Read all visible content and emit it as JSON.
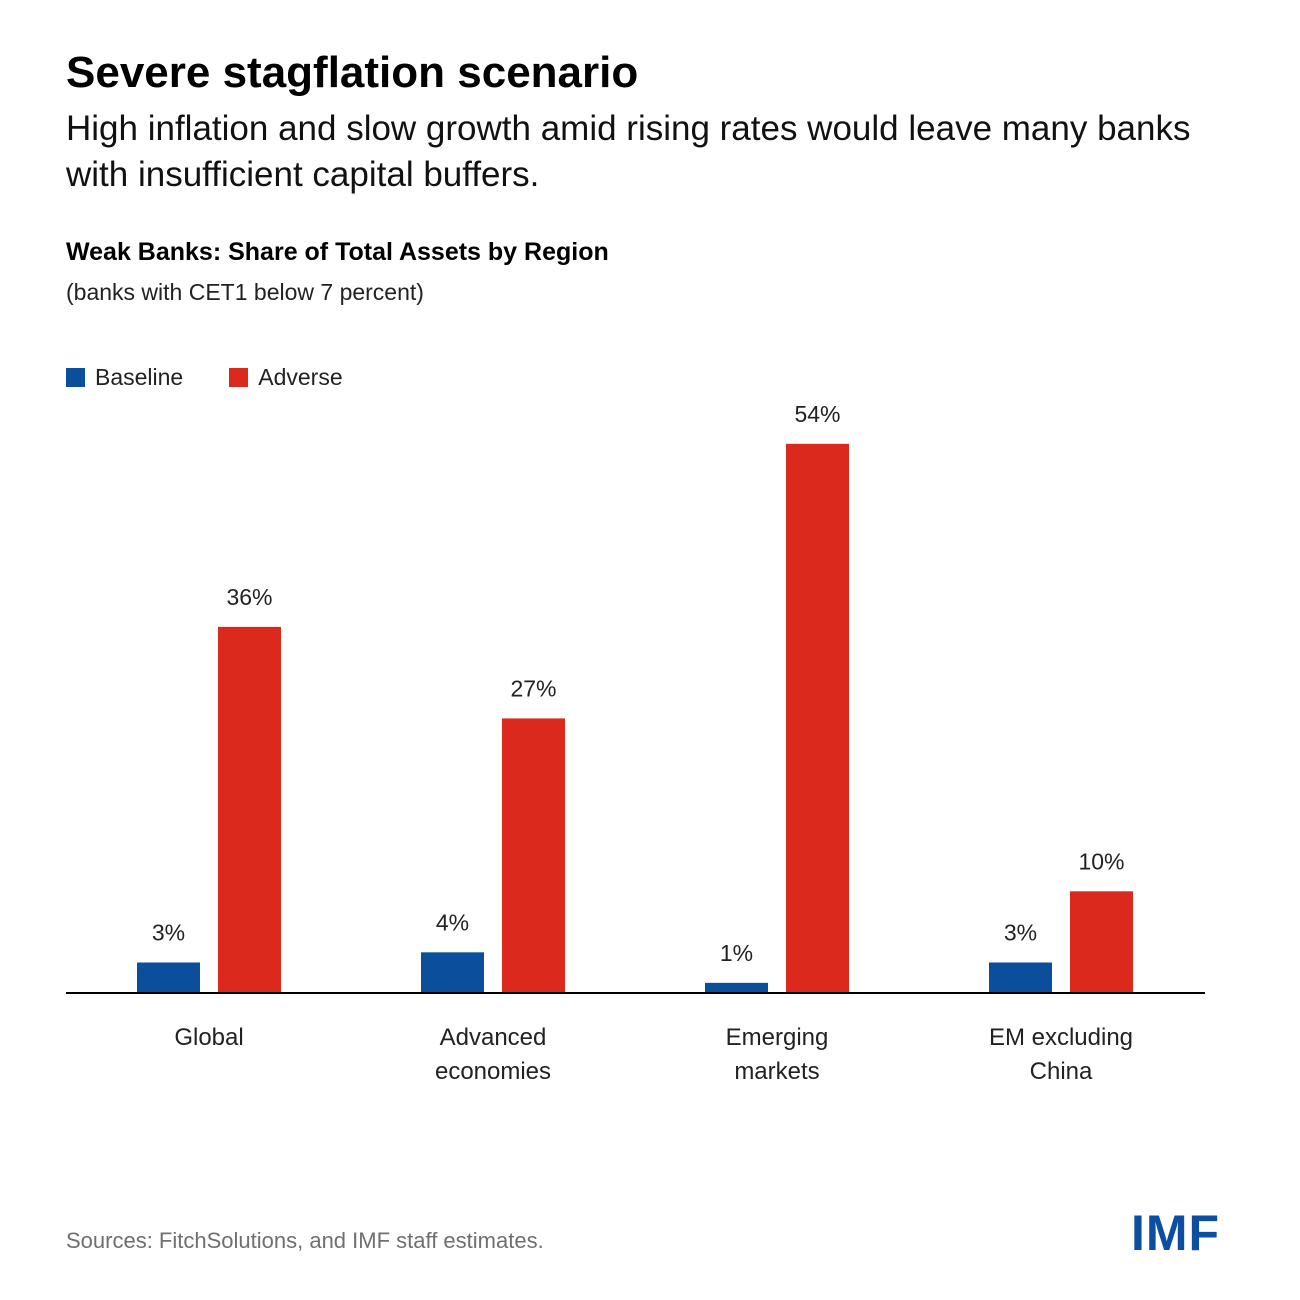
{
  "header": {
    "title": "Severe stagflation scenario",
    "subtitle": "High inflation and slow growth amid rising rates would leave many banks with insufficient capital buffers."
  },
  "colors": {
    "baseline": "#0b4f9c",
    "adverse": "#dc291e",
    "axis": "#000000",
    "logo": "#0d4ea1"
  },
  "chart_data": {
    "type": "bar",
    "title": "Weak Banks: Share of Total Assets by Region",
    "subtitle": "(banks with CET1 below 7 percent)",
    "categories": [
      [
        "Global"
      ],
      [
        "Advanced",
        "economies"
      ],
      [
        "Emerging",
        "markets"
      ],
      [
        "EM excluding",
        "China"
      ]
    ],
    "series": [
      {
        "name": "Baseline",
        "values": [
          3,
          4,
          1,
          3
        ],
        "labels": [
          "3%",
          "4%",
          "1%",
          "3%"
        ]
      },
      {
        "name": "Adverse",
        "values": [
          36,
          27,
          54,
          10
        ],
        "labels": [
          "36%",
          "27%",
          "54%",
          "10%"
        ]
      }
    ],
    "xlabel": "",
    "ylabel": "",
    "ylim": [
      0,
      60
    ],
    "grid": false,
    "legend": "top-left"
  },
  "footer": {
    "source": "Sources: FitchSolutions, and IMF staff estimates.",
    "logo": "IMF"
  }
}
